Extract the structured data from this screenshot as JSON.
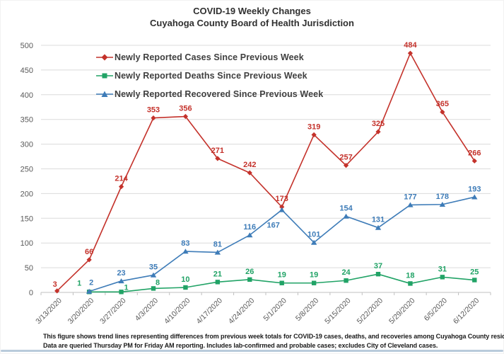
{
  "title": {
    "line1": "COVID-19 Weekly Changes",
    "line2": "Cuyahoga County Board of Health Jurisdiction"
  },
  "footnote": {
    "line1": "This figure shows trend lines representing differences from previous week totals for COVID-19 cases, deaths, and recoveries among Cuyahoga County residents.",
    "line2": "Data are queried Thursday PM for Friday AM reporting. Includes lab-confirmed and probable cases; excludes City of Cleveland cases."
  },
  "chart_data": {
    "type": "line",
    "title": "COVID-19 Weekly Changes - Cuyahoga County Board of Health Jurisdiction",
    "categories": [
      "3/13/2020",
      "3/20/2020",
      "3/27/2020",
      "4/3/2020",
      "4/10/2020",
      "4/17/2020",
      "4/24/2020",
      "5/1/2020",
      "5/8/2020",
      "5/15/2020",
      "5/22/2020",
      "5/29/2020",
      "6/5/2020",
      "6/12/2020"
    ],
    "series": [
      {
        "name": "Newly Reported Cases Since Previous Week",
        "color": "#C4322B",
        "marker": "diamond",
        "values": [
          3,
          66,
          214,
          353,
          356,
          271,
          242,
          173,
          319,
          257,
          325,
          484,
          365,
          266
        ]
      },
      {
        "name": "Newly Reported Deaths Since Previous Week",
        "color": "#21A366",
        "marker": "square",
        "values": [
          null,
          1,
          1,
          8,
          10,
          21,
          26,
          19,
          19,
          24,
          37,
          18,
          31,
          25
        ]
      },
      {
        "name": "Newly Reported Recovered Since Previous Week",
        "color": "#3E7CB8",
        "marker": "triangle",
        "values": [
          null,
          2,
          23,
          35,
          83,
          81,
          116,
          167,
          101,
          154,
          131,
          177,
          178,
          193
        ]
      }
    ],
    "ylim": [
      0,
      500
    ],
    "yticks": [
      0,
      50,
      100,
      150,
      200,
      250,
      300,
      350,
      400,
      450,
      500
    ],
    "grid": true,
    "data_labels": true,
    "legend_position": "top-left-inside",
    "xlabel": "",
    "ylabel": ""
  },
  "colors": {
    "grid": "#DBDBDB",
    "axis_line": "#C0C0C0",
    "tick_label": "#595959",
    "title_text": "#303030",
    "legend_text": "#3F3F3F",
    "footnote_text": "#1A1A1A",
    "bottom_bar": "#B9CBDB"
  }
}
